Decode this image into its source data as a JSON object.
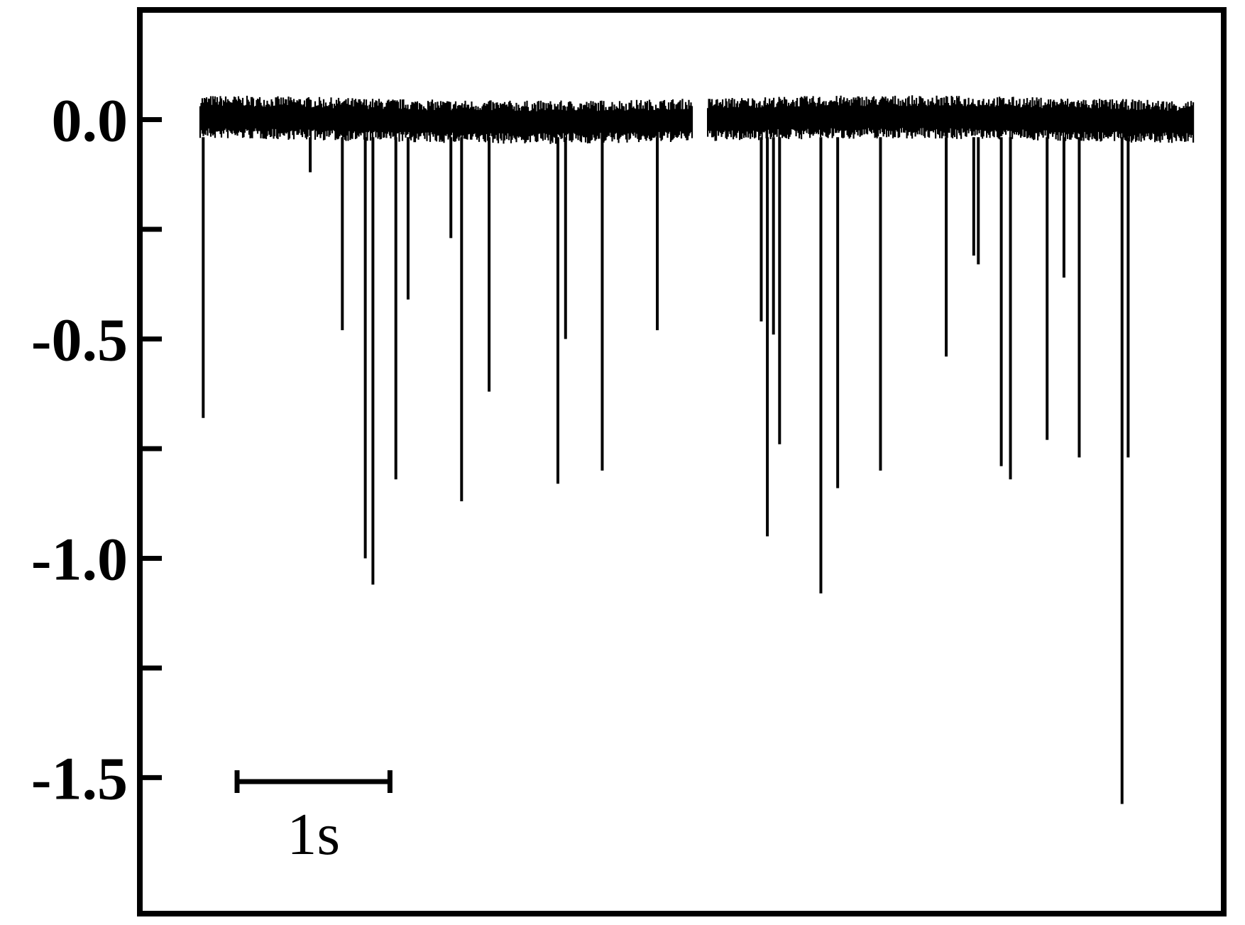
{
  "chart_data": {
    "type": "line",
    "title": "",
    "xlabel": "",
    "ylabel": "",
    "ylim": [
      -1.81,
      0.25
    ],
    "y_ticks": [
      0.0,
      -0.25,
      -0.5,
      -0.75,
      -1.0,
      -1.25,
      -1.5
    ],
    "y_tick_labels": [
      "0.0",
      "-0.5",
      "-1.0",
      "-1.5"
    ],
    "grid": false,
    "legend": "none",
    "colors": {
      "trace": "#000000",
      "frame": "#000000",
      "background": "#ffffff"
    },
    "time_range_s": [
      0,
      6.5
    ],
    "gap_s": [
      3.22,
      3.32
    ],
    "baseline_noise_amplitude": 0.045,
    "scale_bar": {
      "label": "1s",
      "duration_s": 1.0
    },
    "series": [
      {
        "events": [
          {
            "t": 0.02,
            "y": -0.68
          },
          {
            "t": 0.72,
            "y": -0.12
          },
          {
            "t": 0.93,
            "y": -0.48
          },
          {
            "t": 1.08,
            "y": -1.0
          },
          {
            "t": 1.13,
            "y": -1.06
          },
          {
            "t": 1.28,
            "y": -0.82
          },
          {
            "t": 1.36,
            "y": -0.41
          },
          {
            "t": 1.64,
            "y": -0.27
          },
          {
            "t": 1.71,
            "y": -0.87
          },
          {
            "t": 1.89,
            "y": -0.62
          },
          {
            "t": 2.34,
            "y": -0.83
          },
          {
            "t": 2.39,
            "y": -0.5
          },
          {
            "t": 2.63,
            "y": -0.8
          },
          {
            "t": 2.99,
            "y": -0.48
          },
          {
            "t": 3.67,
            "y": -0.46
          },
          {
            "t": 3.71,
            "y": -0.95
          },
          {
            "t": 3.75,
            "y": -0.49
          },
          {
            "t": 3.79,
            "y": -0.74
          },
          {
            "t": 4.06,
            "y": -1.08
          },
          {
            "t": 4.17,
            "y": -0.84
          },
          {
            "t": 4.45,
            "y": -0.8
          },
          {
            "t": 4.88,
            "y": -0.54
          },
          {
            "t": 5.06,
            "y": -0.31
          },
          {
            "t": 5.09,
            "y": -0.33
          },
          {
            "t": 5.24,
            "y": -0.79
          },
          {
            "t": 5.3,
            "y": -0.82
          },
          {
            "t": 5.54,
            "y": -0.73
          },
          {
            "t": 5.65,
            "y": -0.36
          },
          {
            "t": 5.75,
            "y": -0.77
          },
          {
            "t": 6.03,
            "y": -1.56
          },
          {
            "t": 6.07,
            "y": -0.77
          }
        ]
      }
    ]
  }
}
